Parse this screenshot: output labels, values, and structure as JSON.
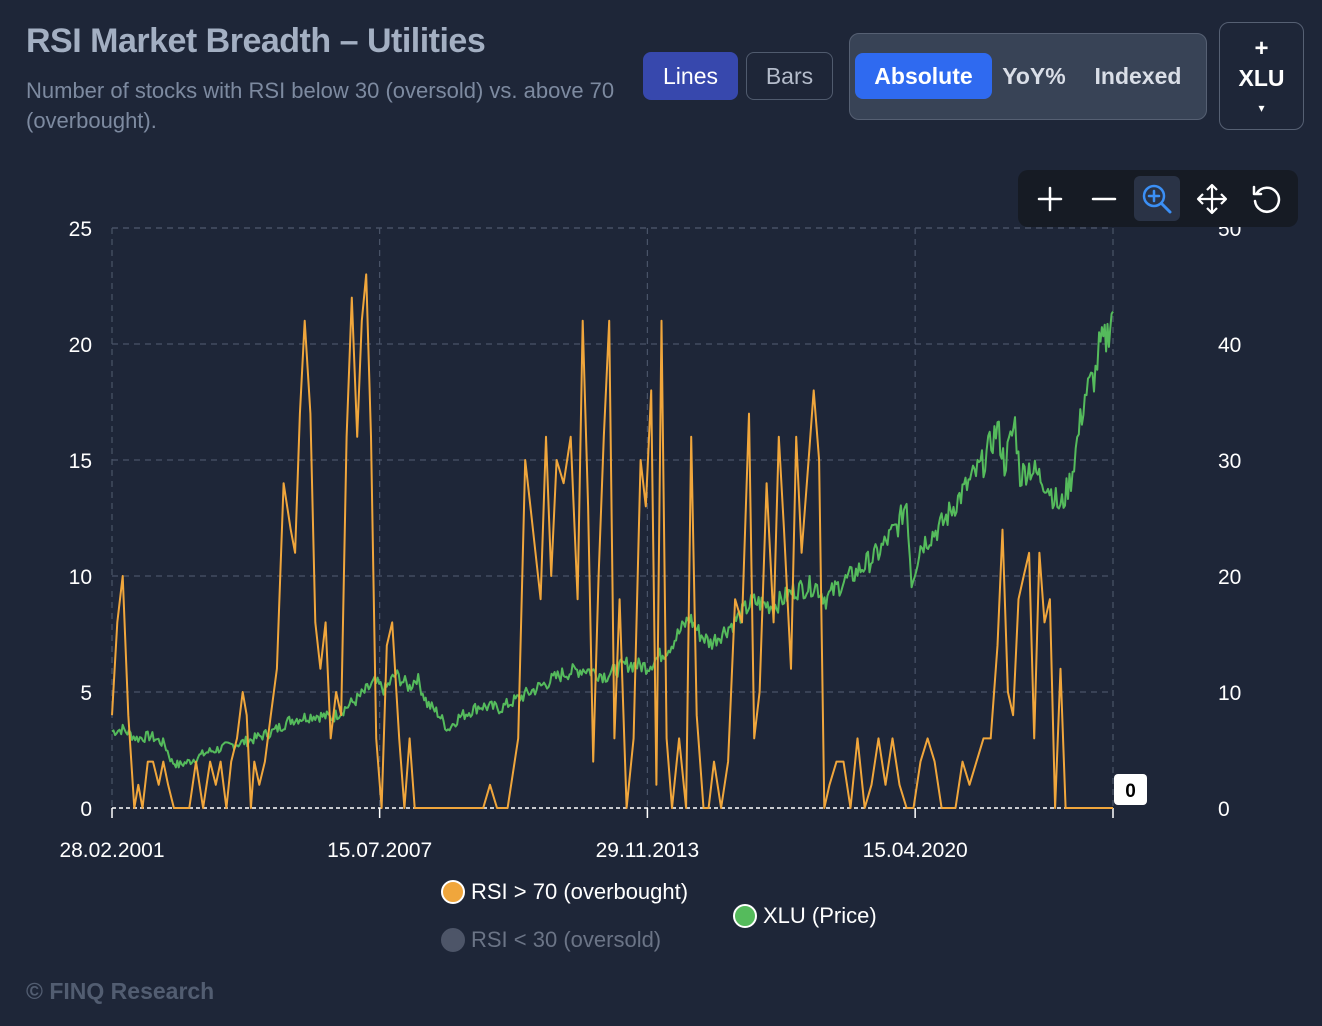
{
  "header": {
    "title": "RSI Market Breadth – Utilities",
    "subtitle": "Number of stocks with RSI below 30 (oversold) vs. above 70 (overbought)."
  },
  "controls": {
    "chart_type": {
      "options": [
        "Lines",
        "Bars"
      ],
      "selected": "Lines"
    },
    "mode": {
      "absolute": "Absolute",
      "yoy_line1": "YoY",
      "yoy_line2": "%",
      "indexed": "Indexed",
      "selected": "Absolute"
    },
    "ticker": {
      "plus": "+",
      "name": "XLU",
      "caret": "▾"
    }
  },
  "toolbar": {
    "tools": [
      "plus-icon",
      "minus-icon",
      "zoom-icon",
      "pan-icon",
      "reset-icon"
    ],
    "active": "zoom-icon"
  },
  "colors": {
    "background": "#1e2638",
    "overbought": "#f0a63c",
    "oversold": "#4d5568",
    "price": "#55bb5c",
    "accent": "#2f6af0"
  },
  "legend": {
    "overbought": "RSI > 70 (overbought)",
    "oversold": "RSI < 30 (oversold)",
    "price": "XLU (Price)"
  },
  "footer": "© FINQ Research",
  "chart_data": {
    "type": "line",
    "title": "RSI Market Breadth – Utilities",
    "x_range": [
      "2001-02-28",
      "2024-12-31"
    ],
    "x_ticks": [
      "28.02.2001",
      "15.07.2007",
      "29.11.2013",
      "15.04.2020"
    ],
    "y_left": {
      "range": [
        0,
        25
      ],
      "ticks": [
        0,
        5,
        10,
        15,
        20,
        25
      ]
    },
    "y_right": {
      "range": [
        0,
        50
      ],
      "ticks": [
        0,
        10,
        20,
        30,
        40,
        50
      ]
    },
    "grid": true,
    "legend_position": "bottom",
    "last_value_label": "0",
    "series": [
      {
        "name": "RSI > 70 (overbought)",
        "axis": "left",
        "visible": true,
        "points": [
          [
            "2001-02-28",
            4
          ],
          [
            "2001-04-15",
            8
          ],
          [
            "2001-06-01",
            10
          ],
          [
            "2001-07-20",
            4
          ],
          [
            "2001-09-10",
            0
          ],
          [
            "2001-10-15",
            1
          ],
          [
            "2001-11-20",
            0
          ],
          [
            "2002-01-05",
            2
          ],
          [
            "2002-02-20",
            2
          ],
          [
            "2002-04-10",
            1
          ],
          [
            "2002-05-20",
            2
          ],
          [
            "2002-07-01",
            1
          ],
          [
            "2002-08-20",
            0
          ],
          [
            "2002-11-10",
            0
          ],
          [
            "2003-01-01",
            0
          ],
          [
            "2003-03-01",
            2
          ],
          [
            "2003-05-01",
            0
          ],
          [
            "2003-07-01",
            2
          ],
          [
            "2003-08-20",
            1
          ],
          [
            "2003-10-01",
            2
          ],
          [
            "2003-11-20",
            0
          ],
          [
            "2004-01-01",
            2
          ],
          [
            "2004-02-20",
            3
          ],
          [
            "2004-04-10",
            5
          ],
          [
            "2004-05-15",
            4
          ],
          [
            "2004-06-20",
            0
          ],
          [
            "2004-07-20",
            2
          ],
          [
            "2004-09-01",
            1
          ],
          [
            "2004-10-20",
            2
          ],
          [
            "2004-12-10",
            4
          ],
          [
            "2005-02-01",
            6
          ],
          [
            "2005-04-01",
            14
          ],
          [
            "2005-06-01",
            12
          ],
          [
            "2005-07-10",
            11
          ],
          [
            "2005-08-20",
            17
          ],
          [
            "2005-10-01",
            21
          ],
          [
            "2005-11-20",
            17
          ],
          [
            "2006-01-01",
            8
          ],
          [
            "2006-02-15",
            6
          ],
          [
            "2006-04-01",
            8
          ],
          [
            "2006-05-15",
            3
          ],
          [
            "2006-07-01",
            5
          ],
          [
            "2006-08-15",
            4
          ],
          [
            "2006-10-01",
            16
          ],
          [
            "2006-11-15",
            22
          ],
          [
            "2007-01-01",
            16
          ],
          [
            "2007-02-10",
            21
          ],
          [
            "2007-03-20",
            23
          ],
          [
            "2007-05-01",
            16
          ],
          [
            "2007-06-15",
            3
          ],
          [
            "2007-08-01",
            0
          ],
          [
            "2007-09-15",
            7
          ],
          [
            "2007-11-01",
            8
          ],
          [
            "2008-01-01",
            3
          ],
          [
            "2008-02-15",
            0
          ],
          [
            "2008-04-01",
            3
          ],
          [
            "2008-05-15",
            0
          ],
          [
            "2008-08-01",
            0
          ],
          [
            "2009-01-01",
            0
          ],
          [
            "2009-06-01",
            0
          ],
          [
            "2009-09-01",
            0
          ],
          [
            "2010-01-01",
            0
          ],
          [
            "2010-03-01",
            1
          ],
          [
            "2010-05-01",
            0
          ],
          [
            "2010-08-01",
            0
          ],
          [
            "2010-11-01",
            3
          ],
          [
            "2011-01-01",
            15
          ],
          [
            "2011-02-15",
            13
          ],
          [
            "2011-04-01",
            11
          ],
          [
            "2011-05-15",
            9
          ],
          [
            "2011-07-01",
            16
          ],
          [
            "2011-08-15",
            10
          ],
          [
            "2011-10-01",
            15
          ],
          [
            "2011-12-01",
            14
          ],
          [
            "2012-02-01",
            16
          ],
          [
            "2012-04-01",
            9
          ],
          [
            "2012-05-15",
            21
          ],
          [
            "2012-07-01",
            13
          ],
          [
            "2012-08-15",
            2
          ],
          [
            "2012-10-01",
            10
          ],
          [
            "2012-11-15",
            16
          ],
          [
            "2013-01-01",
            21
          ],
          [
            "2013-02-15",
            3
          ],
          [
            "2013-04-01",
            9
          ],
          [
            "2013-06-01",
            0
          ],
          [
            "2013-08-01",
            3
          ],
          [
            "2013-10-01",
            15
          ],
          [
            "2013-11-15",
            13
          ],
          [
            "2014-01-01",
            18
          ],
          [
            "2014-02-15",
            1
          ],
          [
            "2014-04-01",
            21
          ],
          [
            "2014-05-15",
            3
          ],
          [
            "2014-07-01",
            0
          ],
          [
            "2014-09-01",
            3
          ],
          [
            "2014-11-01",
            0
          ],
          [
            "2014-12-15",
            16
          ],
          [
            "2015-02-01",
            4
          ],
          [
            "2015-04-01",
            0
          ],
          [
            "2015-05-15",
            0
          ],
          [
            "2015-07-01",
            2
          ],
          [
            "2015-09-01",
            0
          ],
          [
            "2015-11-01",
            2
          ],
          [
            "2016-01-01",
            9
          ],
          [
            "2016-03-01",
            8
          ],
          [
            "2016-05-01",
            17
          ],
          [
            "2016-06-15",
            3
          ],
          [
            "2016-08-01",
            5
          ],
          [
            "2016-10-01",
            14
          ],
          [
            "2016-12-01",
            8
          ],
          [
            "2017-01-15",
            16
          ],
          [
            "2017-03-01",
            12
          ],
          [
            "2017-05-01",
            6
          ],
          [
            "2017-06-15",
            16
          ],
          [
            "2017-08-01",
            11
          ],
          [
            "2017-10-01",
            15
          ],
          [
            "2017-11-15",
            18
          ],
          [
            "2018-01-01",
            15
          ],
          [
            "2018-02-15",
            0
          ],
          [
            "2018-04-01",
            1
          ],
          [
            "2018-06-01",
            2
          ],
          [
            "2018-08-01",
            2
          ],
          [
            "2018-10-01",
            0
          ],
          [
            "2018-12-01",
            3
          ],
          [
            "2019-02-01",
            0
          ],
          [
            "2019-04-01",
            1
          ],
          [
            "2019-06-01",
            3
          ],
          [
            "2019-08-01",
            1
          ],
          [
            "2019-10-01",
            3
          ],
          [
            "2019-12-01",
            1
          ],
          [
            "2020-02-01",
            0
          ],
          [
            "2020-04-01",
            0
          ],
          [
            "2020-06-01",
            2
          ],
          [
            "2020-08-01",
            3
          ],
          [
            "2020-10-01",
            2
          ],
          [
            "2020-12-01",
            0
          ],
          [
            "2021-02-01",
            0
          ],
          [
            "2021-04-01",
            0
          ],
          [
            "2021-06-01",
            2
          ],
          [
            "2021-08-01",
            1
          ],
          [
            "2021-10-01",
            2
          ],
          [
            "2021-12-01",
            3
          ],
          [
            "2022-02-01",
            3
          ],
          [
            "2022-04-01",
            7
          ],
          [
            "2022-05-15",
            12
          ],
          [
            "2022-07-01",
            5
          ],
          [
            "2022-08-15",
            4
          ],
          [
            "2022-10-01",
            9
          ],
          [
            "2022-11-15",
            10
          ],
          [
            "2023-01-01",
            11
          ],
          [
            "2023-02-15",
            3
          ],
          [
            "2023-04-01",
            11
          ],
          [
            "2023-05-15",
            8
          ],
          [
            "2023-07-01",
            9
          ],
          [
            "2023-08-15",
            0
          ],
          [
            "2023-10-01",
            6
          ],
          [
            "2023-11-15",
            0
          ],
          [
            "2024-12-31",
            0
          ]
        ]
      },
      {
        "name": "RSI < 30 (oversold)",
        "axis": "left",
        "visible": false,
        "points": []
      },
      {
        "name": "XLU (Price)",
        "axis": "right",
        "visible": true,
        "points": [
          [
            "2001-02-28",
            6.6
          ],
          [
            "2001-06-01",
            6.8
          ],
          [
            "2001-10-01",
            6.0
          ],
          [
            "2002-02-01",
            6.2
          ],
          [
            "2002-06-01",
            5.5
          ],
          [
            "2002-08-01",
            4.0
          ],
          [
            "2002-10-01",
            3.7
          ],
          [
            "2003-01-01",
            4.0
          ],
          [
            "2003-06-01",
            4.8
          ],
          [
            "2004-01-01",
            5.4
          ],
          [
            "2004-06-01",
            5.8
          ],
          [
            "2005-01-01",
            6.6
          ],
          [
            "2005-06-01",
            7.6
          ],
          [
            "2006-01-01",
            8.0
          ],
          [
            "2006-06-01",
            7.8
          ],
          [
            "2007-01-01",
            9.4
          ],
          [
            "2007-06-01",
            10.8
          ],
          [
            "2007-09-01",
            10.2
          ],
          [
            "2007-12-01",
            11.5
          ],
          [
            "2008-04-01",
            10.4
          ],
          [
            "2008-06-01",
            11.3
          ],
          [
            "2008-09-01",
            9.0
          ],
          [
            "2008-12-01",
            8.2
          ],
          [
            "2009-03-01",
            6.8
          ],
          [
            "2009-06-01",
            7.8
          ],
          [
            "2009-12-01",
            8.8
          ],
          [
            "2010-06-01",
            8.6
          ],
          [
            "2010-12-01",
            9.6
          ],
          [
            "2011-06-01",
            10.6
          ],
          [
            "2011-12-01",
            11.6
          ],
          [
            "2012-06-01",
            12.0
          ],
          [
            "2012-12-01",
            11.4
          ],
          [
            "2013-06-01",
            12.4
          ],
          [
            "2013-12-01",
            12.2
          ],
          [
            "2014-06-01",
            13.8
          ],
          [
            "2014-12-01",
            16.4
          ],
          [
            "2015-03-01",
            15.0
          ],
          [
            "2015-06-01",
            14.2
          ],
          [
            "2015-12-01",
            15.8
          ],
          [
            "2016-06-01",
            17.8
          ],
          [
            "2016-12-01",
            17.4
          ],
          [
            "2017-06-01",
            18.8
          ],
          [
            "2017-12-01",
            19.2
          ],
          [
            "2018-03-01",
            18.0
          ],
          [
            "2018-06-01",
            19.0
          ],
          [
            "2018-12-01",
            20.4
          ],
          [
            "2019-06-01",
            22.0
          ],
          [
            "2019-12-01",
            24.6
          ],
          [
            "2020-02-01",
            26.5
          ],
          [
            "2020-03-15",
            19.5
          ],
          [
            "2020-06-01",
            22.6
          ],
          [
            "2020-12-01",
            24.4
          ],
          [
            "2021-06-01",
            27.2
          ],
          [
            "2021-12-01",
            29.8
          ],
          [
            "2022-04-01",
            32.8
          ],
          [
            "2022-06-01",
            29.6
          ],
          [
            "2022-09-01",
            33.2
          ],
          [
            "2022-10-15",
            28.6
          ],
          [
            "2023-01-01",
            29.4
          ],
          [
            "2023-06-01",
            28.0
          ],
          [
            "2023-10-01",
            25.8
          ],
          [
            "2024-01-01",
            28.4
          ],
          [
            "2024-05-01",
            35.6
          ],
          [
            "2024-08-01",
            37.4
          ],
          [
            "2024-09-01",
            39.6
          ],
          [
            "2024-11-01",
            40.4
          ],
          [
            "2024-12-31",
            42.8
          ]
        ]
      }
    ]
  }
}
